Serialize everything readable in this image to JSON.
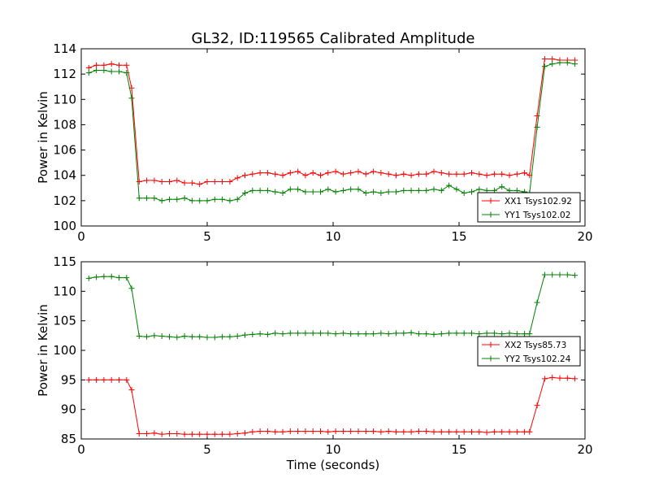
{
  "figure": {
    "title": "GL32, ID:119565 Calibrated Amplitude"
  },
  "colors": {
    "red": "#ff0000",
    "green": "#008000"
  },
  "chart_data": [
    {
      "type": "line",
      "title": "GL32, ID:119565 Calibrated Amplitude",
      "xlabel": "",
      "ylabel": "Power in Kelvin",
      "xlim": [
        0,
        20
      ],
      "ylim": [
        100,
        114
      ],
      "xticks": [
        0,
        5,
        10,
        15,
        20
      ],
      "yticks": [
        100,
        102,
        104,
        106,
        108,
        110,
        112,
        114
      ],
      "grid": false,
      "legend_position": "lower-right",
      "series": [
        {
          "name": "XX1 Tsys102.92",
          "color": "#ff0000",
          "x": [
            0.3,
            0.6,
            0.9,
            1.2,
            1.5,
            1.8,
            2.0,
            2.3,
            2.6,
            2.9,
            3.2,
            3.5,
            3.8,
            4.1,
            4.4,
            4.7,
            5.0,
            5.3,
            5.6,
            5.9,
            6.2,
            6.5,
            6.8,
            7.1,
            7.4,
            7.7,
            8.0,
            8.3,
            8.6,
            8.9,
            9.2,
            9.5,
            9.8,
            10.1,
            10.4,
            10.7,
            11.0,
            11.3,
            11.6,
            11.9,
            12.2,
            12.5,
            12.8,
            13.1,
            13.4,
            13.7,
            14.0,
            14.3,
            14.6,
            14.9,
            15.2,
            15.5,
            15.8,
            16.1,
            16.4,
            16.7,
            17.0,
            17.3,
            17.6,
            17.8,
            18.1,
            18.4,
            18.7,
            19.0,
            19.3,
            19.6
          ],
          "y": [
            112.5,
            112.7,
            112.7,
            112.8,
            112.7,
            112.7,
            110.9,
            103.5,
            103.6,
            103.6,
            103.5,
            103.5,
            103.6,
            103.4,
            103.4,
            103.3,
            103.5,
            103.5,
            103.5,
            103.5,
            103.8,
            104.0,
            104.1,
            104.2,
            104.2,
            104.1,
            104.0,
            104.2,
            104.3,
            104.0,
            104.2,
            104.0,
            104.2,
            104.3,
            104.1,
            104.2,
            104.3,
            104.1,
            104.3,
            104.2,
            104.1,
            104.0,
            104.1,
            104.0,
            104.1,
            104.1,
            104.3,
            104.2,
            104.1,
            104.1,
            104.1,
            104.2,
            104.1,
            104.0,
            104.1,
            104.1,
            104.0,
            104.1,
            104.2,
            104.0,
            108.7,
            113.2,
            113.2,
            113.1,
            113.1,
            113.1
          ]
        },
        {
          "name": "YY1 Tsys102.02",
          "color": "#008000",
          "x": [
            0.3,
            0.6,
            0.9,
            1.2,
            1.5,
            1.8,
            2.0,
            2.3,
            2.6,
            2.9,
            3.2,
            3.5,
            3.8,
            4.1,
            4.4,
            4.7,
            5.0,
            5.3,
            5.6,
            5.9,
            6.2,
            6.5,
            6.8,
            7.1,
            7.4,
            7.7,
            8.0,
            8.3,
            8.6,
            8.9,
            9.2,
            9.5,
            9.8,
            10.1,
            10.4,
            10.7,
            11.0,
            11.3,
            11.6,
            11.9,
            12.2,
            12.5,
            12.8,
            13.1,
            13.4,
            13.7,
            14.0,
            14.3,
            14.6,
            14.9,
            15.2,
            15.5,
            15.8,
            16.1,
            16.4,
            16.7,
            17.0,
            17.3,
            17.6,
            17.8,
            18.1,
            18.4,
            18.7,
            19.0,
            19.3,
            19.6
          ],
          "y": [
            112.1,
            112.3,
            112.3,
            112.2,
            112.2,
            112.1,
            110.1,
            102.2,
            102.2,
            102.2,
            102.0,
            102.1,
            102.1,
            102.2,
            102.0,
            102.0,
            102.0,
            102.1,
            102.1,
            102.0,
            102.1,
            102.6,
            102.8,
            102.8,
            102.8,
            102.7,
            102.6,
            102.9,
            102.9,
            102.7,
            102.7,
            102.7,
            102.9,
            102.7,
            102.8,
            102.9,
            102.9,
            102.6,
            102.7,
            102.6,
            102.7,
            102.7,
            102.8,
            102.8,
            102.8,
            102.8,
            102.9,
            102.8,
            103.2,
            102.9,
            102.6,
            102.7,
            102.9,
            102.8,
            102.8,
            103.1,
            102.8,
            102.8,
            102.7,
            102.6,
            107.8,
            112.6,
            112.8,
            112.9,
            112.9,
            112.8
          ]
        }
      ]
    },
    {
      "type": "line",
      "title": "",
      "xlabel": "Time (seconds)",
      "ylabel": "Power in Kelvin",
      "xlim": [
        0,
        20
      ],
      "ylim": [
        85,
        115
      ],
      "xticks": [
        0,
        5,
        10,
        15,
        20
      ],
      "yticks": [
        85,
        90,
        95,
        100,
        105,
        110,
        115
      ],
      "grid": false,
      "legend_position": "right",
      "series": [
        {
          "name": "XX2 Tsys85.73",
          "color": "#ff0000",
          "x": [
            0.3,
            0.6,
            0.9,
            1.2,
            1.5,
            1.8,
            2.0,
            2.3,
            2.6,
            2.9,
            3.2,
            3.5,
            3.8,
            4.1,
            4.4,
            4.7,
            5.0,
            5.3,
            5.6,
            5.9,
            6.2,
            6.5,
            6.8,
            7.1,
            7.4,
            7.7,
            8.0,
            8.3,
            8.6,
            8.9,
            9.2,
            9.5,
            9.8,
            10.1,
            10.4,
            10.7,
            11.0,
            11.3,
            11.6,
            11.9,
            12.2,
            12.5,
            12.8,
            13.1,
            13.4,
            13.7,
            14.0,
            14.3,
            14.6,
            14.9,
            15.2,
            15.5,
            15.8,
            16.1,
            16.4,
            16.7,
            17.0,
            17.3,
            17.6,
            17.8,
            18.1,
            18.4,
            18.7,
            19.0,
            19.3,
            19.6
          ],
          "y": [
            95.0,
            95.0,
            95.0,
            95.0,
            95.0,
            95.0,
            93.3,
            85.9,
            85.9,
            86.0,
            85.8,
            85.9,
            85.9,
            85.8,
            85.8,
            85.8,
            85.8,
            85.8,
            85.8,
            85.8,
            85.9,
            86.0,
            86.2,
            86.3,
            86.3,
            86.2,
            86.2,
            86.3,
            86.3,
            86.3,
            86.3,
            86.3,
            86.2,
            86.3,
            86.3,
            86.3,
            86.3,
            86.3,
            86.3,
            86.2,
            86.3,
            86.2,
            86.2,
            86.2,
            86.3,
            86.3,
            86.2,
            86.2,
            86.2,
            86.2,
            86.2,
            86.2,
            86.2,
            86.1,
            86.2,
            86.2,
            86.2,
            86.2,
            86.2,
            86.2,
            90.7,
            95.2,
            95.4,
            95.3,
            95.3,
            95.2
          ]
        },
        {
          "name": "YY2 Tsys102.24",
          "color": "#008000",
          "x": [
            0.3,
            0.6,
            0.9,
            1.2,
            1.5,
            1.8,
            2.0,
            2.3,
            2.6,
            2.9,
            3.2,
            3.5,
            3.8,
            4.1,
            4.4,
            4.7,
            5.0,
            5.3,
            5.6,
            5.9,
            6.2,
            6.5,
            6.8,
            7.1,
            7.4,
            7.7,
            8.0,
            8.3,
            8.6,
            8.9,
            9.2,
            9.5,
            9.8,
            10.1,
            10.4,
            10.7,
            11.0,
            11.3,
            11.6,
            11.9,
            12.2,
            12.5,
            12.8,
            13.1,
            13.4,
            13.7,
            14.0,
            14.3,
            14.6,
            14.9,
            15.2,
            15.5,
            15.8,
            16.1,
            16.4,
            16.7,
            17.0,
            17.3,
            17.6,
            17.8,
            18.1,
            18.4,
            18.7,
            19.0,
            19.3,
            19.6
          ],
          "y": [
            112.2,
            112.4,
            112.5,
            112.5,
            112.3,
            112.3,
            110.5,
            102.4,
            102.3,
            102.5,
            102.4,
            102.3,
            102.2,
            102.4,
            102.3,
            102.3,
            102.2,
            102.2,
            102.3,
            102.3,
            102.4,
            102.6,
            102.7,
            102.8,
            102.7,
            102.9,
            102.8,
            102.9,
            102.9,
            102.9,
            102.9,
            102.9,
            102.9,
            102.8,
            102.9,
            102.8,
            102.8,
            102.8,
            102.8,
            102.9,
            102.8,
            102.9,
            102.9,
            103.0,
            102.8,
            102.8,
            102.7,
            102.8,
            102.9,
            102.9,
            102.9,
            102.9,
            102.8,
            102.9,
            102.9,
            102.8,
            102.9,
            102.8,
            102.8,
            102.8,
            108.1,
            112.8,
            112.8,
            112.8,
            112.8,
            112.7
          ]
        }
      ]
    }
  ]
}
